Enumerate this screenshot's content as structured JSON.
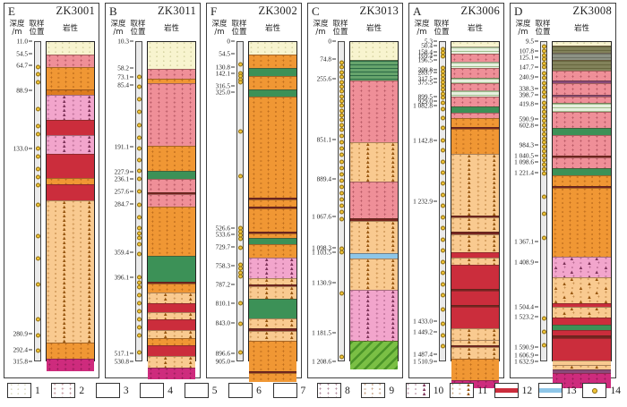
{
  "figure": {
    "type": "borehole-lithology-columns"
  },
  "headers": {
    "depth_l1": "深度",
    "depth_l2": "/m",
    "sample_l1": "取样",
    "sample_l2": "位置",
    "lith": "岩性"
  },
  "colors": {
    "gravel": "#f8f4cf",
    "pink_plus": "#ef8f98",
    "ltgreen_lines": "#e7f0df",
    "green_lines": "#66a46c",
    "olive": "#82825a",
    "gray": "#8d9285",
    "green_hatch": "#7abf45",
    "green_solid": "#3c9157",
    "magenta": "#ce2b7d",
    "orange": "#f09734",
    "pink_violet": "#f2a5cc",
    "tan": "#f9ca90",
    "red_band": "#cb2d3c",
    "blue_band": "#8ec6e8",
    "sample_dot": "#f0c437",
    "divider": "#76241f"
  },
  "glyphs": {
    "1": "◦ ",
    "2": "+ ",
    "8": "+ ",
    "9": "+ ▫ ",
    "9d": "+ ▫ ",
    "10": "+ ▫ ▲ ",
    "11": "+ ▫ ▲ "
  },
  "panels": [
    {
      "letter": "E",
      "hole": "ZK3001",
      "labels": [
        [
          "11.0",
          0
        ],
        [
          "54.5",
          3.9
        ],
        [
          "64.7",
          7.6
        ],
        [
          "88.9",
          15.4
        ],
        [
          "133.0",
          33.6
        ],
        [
          "280.9",
          91.3
        ],
        [
          "292.4",
          96.4
        ],
        [
          "315.8",
          100
        ]
      ],
      "samples": [
        8,
        10,
        12.5,
        21,
        26.5,
        29,
        33.5,
        36,
        40,
        42.5,
        45,
        51,
        61,
        68,
        76,
        87,
        92,
        97
      ],
      "segments": [
        [
          "1",
          3.9
        ],
        [
          "2",
          3.7
        ],
        [
          "9",
          6.7
        ],
        [
          "9d",
          1.5
        ],
        [
          "10",
          7.5
        ],
        [
          "12",
          4.5
        ],
        [
          "10",
          5.5
        ],
        [
          "12",
          7.4
        ],
        [
          "9",
          1.8
        ],
        [
          "12",
          4.8
        ],
        [
          "11",
          44.2
        ],
        [
          "9",
          5.0
        ],
        [
          "8",
          3.5
        ]
      ]
    },
    {
      "letter": "B",
      "hole": "ZK3011",
      "labels": [
        [
          "10.3",
          0
        ],
        [
          "58.2",
          8.4
        ],
        [
          "73.1",
          11.2
        ],
        [
          "85.4",
          13.8
        ],
        [
          "191.1",
          33.1
        ],
        [
          "227.9",
          40.7
        ],
        [
          "236.1",
          43.0
        ],
        [
          "257.6",
          46.9
        ],
        [
          "284.7",
          50.8
        ],
        [
          "359.4",
          66.0
        ],
        [
          "396.1",
          73.8
        ],
        [
          "517.1",
          97.5
        ],
        [
          "530.8",
          100
        ]
      ],
      "samples": [
        11,
        14,
        18,
        22,
        26,
        30,
        33.5,
        37,
        40.5,
        43,
        47,
        51,
        55,
        58.5,
        60,
        61.5,
        63.5,
        66.5,
        74,
        75.5,
        77,
        79.5,
        82,
        84.5,
        87,
        89.5,
        92,
        97.5
      ],
      "segments": [
        [
          "1",
          8.4
        ],
        [
          "2",
          2.8
        ],
        [
          "9",
          1.3
        ],
        [
          "2",
          19.3
        ],
        [
          "9",
          7.6
        ],
        [
          "7",
          2.3
        ],
        [
          "2",
          3.9
        ],
        [
          "ln",
          0.3
        ],
        [
          "2",
          3.6
        ],
        [
          "9",
          15.2
        ],
        [
          "7",
          7.8
        ],
        [
          "ln",
          0.4
        ],
        [
          "9",
          2.5
        ],
        [
          "11",
          3.0
        ],
        [
          "12",
          2.5
        ],
        [
          "11",
          2.0
        ],
        [
          "12",
          3.0
        ],
        [
          "11",
          2.2
        ],
        [
          "9",
          2.0
        ],
        [
          "12",
          3.2
        ],
        [
          "11",
          3.3
        ],
        [
          "8",
          3.4
        ]
      ]
    },
    {
      "letter": "F",
      "hole": "ZK3002",
      "labels": [
        [
          "0",
          0
        ],
        [
          "54.5",
          4.0
        ],
        [
          "130.8",
          8.0
        ],
        [
          "142.1",
          10.0
        ],
        [
          "316.5",
          14.0
        ],
        [
          "325.0",
          16.0
        ],
        [
          "526.6",
          58.5
        ],
        [
          "533.6",
          60.2
        ],
        [
          "729.7",
          64.2
        ],
        [
          "758.3",
          70.2
        ],
        [
          "787.2",
          75.9
        ],
        [
          "810.1",
          81.9
        ],
        [
          "843.0",
          88.0
        ],
        [
          "896.6",
          97.4
        ],
        [
          "905.0",
          100
        ]
      ],
      "samples": [
        7,
        9.7,
        10.7,
        11.7,
        12.7,
        28,
        42,
        58.5,
        59.6,
        60.7,
        61.8,
        64.5,
        70,
        71.2,
        72.4,
        73.6,
        82,
        88.5,
        97.5
      ],
      "segments": [
        [
          "1",
          4.0
        ],
        [
          "9",
          4.0
        ],
        [
          "7",
          2.0
        ],
        [
          "9",
          4.0
        ],
        [
          "7",
          2.0
        ],
        [
          "9",
          31.5
        ],
        [
          "ln",
          0.4
        ],
        [
          "9",
          1.8
        ],
        [
          "ln",
          0.4
        ],
        [
          "9",
          6.8
        ],
        [
          "ln",
          0.4
        ],
        [
          "9",
          1.2
        ],
        [
          "7",
          1.7
        ],
        [
          "9",
          4.0
        ],
        [
          "10",
          6.0
        ],
        [
          "11",
          1.6
        ],
        [
          "ln",
          0.4
        ],
        [
          "11",
          3.7
        ],
        [
          "7",
          6.0
        ],
        [
          "11",
          2.8
        ],
        [
          "ln",
          0.4
        ],
        [
          "11",
          2.9
        ],
        [
          "9",
          9.2
        ],
        [
          "ln",
          0.4
        ],
        [
          "9",
          2.4
        ]
      ]
    },
    {
      "letter": "C",
      "hole": "ZK3013",
      "labels": [
        [
          "0",
          0
        ],
        [
          "74.8",
          5.5
        ],
        [
          "255.6",
          11.8
        ],
        [
          "851.1",
          30.8
        ],
        [
          "889.4",
          43.1
        ],
        [
          "1 067.6",
          54.7
        ],
        [
          "1 098.3",
          64.6
        ],
        [
          "1 103.5",
          65.9
        ],
        [
          "1 130.9",
          75.5
        ],
        [
          "1 181.5",
          91.2
        ],
        [
          "1 208.6",
          100
        ]
      ],
      "samples": [
        6.5,
        8,
        9.5,
        11,
        12.5,
        14,
        15.5,
        17,
        18.5,
        20,
        21.5,
        23,
        24.5,
        26,
        27.5,
        29.5,
        31.5,
        33.5,
        35.5,
        37.5,
        39.5,
        41.5,
        43.5,
        45.5,
        47.5,
        49.5,
        51.5,
        53.5,
        55.5,
        65,
        66,
        79,
        99
      ],
      "segments": [
        [
          "1",
          5.5
        ],
        [
          "3g",
          6.3
        ],
        [
          "2",
          19.0
        ],
        [
          "11",
          12.3
        ],
        [
          "2",
          11.1
        ],
        [
          "ln",
          0.5
        ],
        [
          "11",
          9.9
        ],
        [
          "13",
          1.3
        ],
        [
          "11",
          9.6
        ],
        [
          "10",
          15.7
        ],
        [
          "6",
          8.8
        ]
      ]
    },
    {
      "letter": "A",
      "hole": "ZK3006",
      "labels": [
        [
          "5.3",
          0
        ],
        [
          "50.4",
          1.4
        ],
        [
          "158.4",
          3.3
        ],
        [
          "169.4",
          4.4
        ],
        [
          "196.5",
          5.8
        ],
        [
          "209.8",
          8.8
        ],
        [
          "283.7",
          9.9
        ],
        [
          "317.5",
          11.8
        ],
        [
          "375.5",
          12.9
        ],
        [
          "899.5",
          17.4
        ],
        [
          "929.0",
          18.7
        ],
        [
          "1 082.8",
          20.1
        ],
        [
          "1 142.8",
          30.9
        ],
        [
          "1 232.9",
          50.1
        ],
        [
          "1 433.0",
          87.3
        ],
        [
          "1 449.2",
          90.9
        ],
        [
          "1 487.4",
          97.8
        ],
        [
          "1 510.9",
          100
        ]
      ],
      "samples": [
        2.2,
        3.4,
        4.5,
        8.2,
        9.3,
        10.4,
        11.5,
        12.6,
        13.7,
        15,
        16.2,
        17.5,
        19,
        21,
        24,
        27,
        31,
        34,
        37.5,
        41,
        44.5,
        48,
        51.5,
        55,
        58.5,
        62,
        65.5,
        69,
        72.5,
        76,
        79.5,
        84,
        88.5,
        92,
        95.5
      ],
      "segments": [
        [
          "1",
          1.4
        ],
        [
          "3",
          1.9
        ],
        [
          "2",
          2.2
        ],
        [
          "3",
          1.9
        ],
        [
          "2",
          2.7
        ],
        [
          "3",
          1.4
        ],
        [
          "2",
          1.9
        ],
        [
          "3",
          1.7
        ],
        [
          "2",
          2.8
        ],
        [
          "7",
          1.9
        ],
        [
          "2",
          1.4
        ],
        [
          "9",
          2.3
        ],
        [
          "ln",
          0.3
        ],
        [
          "9",
          7.6
        ],
        [
          "11",
          19.2
        ],
        [
          "ln",
          0.4
        ],
        [
          "11",
          4.2
        ],
        [
          "ln",
          0.4
        ],
        [
          "11",
          5.4
        ],
        [
          "12",
          1.4
        ],
        [
          "11",
          1.9
        ],
        [
          "12",
          7.4
        ],
        [
          "ln",
          0.4
        ],
        [
          "12",
          4.1
        ],
        [
          "ln",
          0.4
        ],
        [
          "12",
          6.4
        ],
        [
          "11",
          3.4
        ],
        [
          "11",
          1.3
        ],
        [
          "ln",
          0.4
        ],
        [
          "11",
          3.2
        ],
        [
          "9",
          6.5
        ],
        [
          "8",
          2.2
        ]
      ]
    },
    {
      "letter": "D",
      "hole": "ZK3008",
      "labels": [
        [
          "9.5",
          0
        ],
        [
          "107.8",
          3.2
        ],
        [
          "125.1",
          5.1
        ],
        [
          "147.7",
          8.1
        ],
        [
          "240.9",
          11.1
        ],
        [
          "338.3",
          14.9
        ],
        [
          "398.7",
          16.8
        ],
        [
          "419.8",
          19.5
        ],
        [
          "590.9",
          24.3
        ],
        [
          "602.8",
          26.2
        ],
        [
          "984.3",
          32.4
        ],
        [
          "1 040.5",
          35.7
        ],
        [
          "1 098.6",
          37.8
        ],
        [
          "1 221.4",
          41.1
        ],
        [
          "1 367.1",
          62.7
        ],
        [
          "1 408.9",
          68.9
        ],
        [
          "1 504.4",
          83.0
        ],
        [
          "1 523.2",
          85.9
        ],
        [
          "1 590.9",
          95.4
        ],
        [
          "1 606.9",
          98.1
        ],
        [
          "1 632.9",
          100
        ]
      ],
      "samples": [
        1.5,
        2.8,
        4.1,
        5.4,
        6.7,
        8,
        9.8,
        11.2,
        12.8,
        14.2,
        15.8,
        17.2,
        19,
        20.4,
        21.8,
        23.2,
        24.6,
        26,
        27.4,
        28.8,
        30.2,
        31.6,
        33,
        34.4,
        35.8,
        37.2,
        38.6,
        40,
        41.4,
        48.6,
        54,
        61.4,
        86.8,
        91.1,
        95.1
      ],
      "segments": [
        [
          "1",
          1.2
        ],
        [
          "4",
          2.0
        ],
        [
          "5",
          1.9
        ],
        [
          "4",
          3.0
        ],
        [
          "2",
          3.0
        ],
        [
          "lnP",
          0.3
        ],
        [
          "2",
          3.5
        ],
        [
          "lnP",
          0.3
        ],
        [
          "2",
          1.6
        ],
        [
          "3",
          2.7
        ],
        [
          "2",
          4.8
        ],
        [
          "7",
          1.9
        ],
        [
          "2",
          6.2
        ],
        [
          "ln",
          0.3
        ],
        [
          "2",
          3.0
        ],
        [
          "7",
          2.1
        ],
        [
          "9",
          3.0
        ],
        [
          "ln",
          0.3
        ],
        [
          "9",
          21.3
        ],
        [
          "10",
          6.2
        ],
        [
          "11",
          7.8
        ],
        [
          "12",
          0.8
        ],
        [
          "11",
          3.3
        ],
        [
          "12",
          1.9
        ],
        [
          "7",
          1.3
        ],
        [
          "12",
          1.6
        ],
        [
          "ln",
          0.3
        ],
        [
          "12",
          7.0
        ],
        [
          "11",
          0.9
        ],
        [
          "11",
          1.3
        ],
        [
          "lnP",
          0.8
        ],
        [
          "8",
          4.4
        ]
      ]
    }
  ],
  "legend": {
    "items": [
      {
        "num": "1",
        "t": "1"
      },
      {
        "num": "2",
        "t": "2"
      },
      {
        "num": "3",
        "t": "3"
      },
      {
        "num": "4",
        "t": "4"
      },
      {
        "num": "5",
        "t": "5"
      },
      {
        "num": "6",
        "t": "6"
      },
      {
        "num": "7",
        "t": "7"
      },
      {
        "num": "8",
        "t": "8"
      },
      {
        "num": "9",
        "t": "9"
      },
      {
        "num": "10",
        "t": "10"
      },
      {
        "num": "11",
        "t": "11"
      },
      {
        "num": "12",
        "t": "band-red"
      },
      {
        "num": "13",
        "t": "band-blue"
      },
      {
        "num": "14",
        "t": "sample-dot"
      }
    ]
  }
}
